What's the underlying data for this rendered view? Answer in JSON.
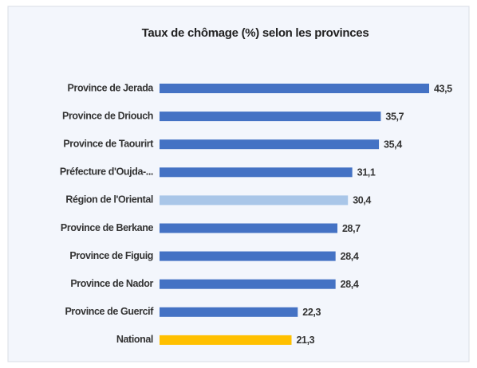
{
  "chart_data": {
    "type": "bar",
    "orientation": "horizontal",
    "title": "Taux de chômage (%) selon les provinces",
    "categories": [
      "Province de Jerada",
      "Province de Driouch",
      "Province de Taourirt",
      "Préfecture d'Oujda-...",
      "Région de l'Oriental",
      "Province de Berkane",
      "Province de Figuig",
      "Province de Nador",
      "Province de Guercif",
      "National"
    ],
    "values": [
      43.5,
      35.7,
      35.4,
      31.1,
      30.4,
      28.7,
      28.4,
      28.4,
      22.3,
      21.3
    ],
    "value_labels": [
      "43,5",
      "35,7",
      "35,4",
      "31,1",
      "30,4",
      "28,7",
      "28,4",
      "28,4",
      "22,3",
      "21,3"
    ],
    "colors": [
      "#4472c4",
      "#4472c4",
      "#4472c4",
      "#4472c4",
      "#a9c6e8",
      "#4472c4",
      "#4472c4",
      "#4472c4",
      "#4472c4",
      "#ffc000"
    ]
  }
}
